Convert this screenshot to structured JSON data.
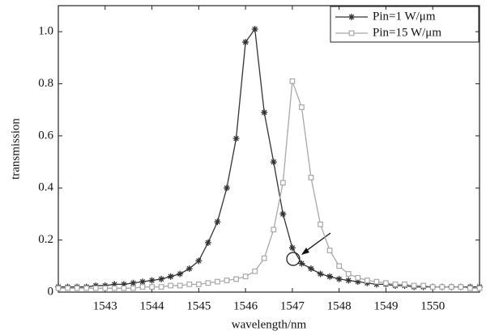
{
  "chart_data": {
    "type": "line",
    "xlabel": "wavelength/nm",
    "ylabel": "transmission",
    "x": [
      1542.0,
      1542.2,
      1542.4,
      1542.6,
      1542.8,
      1543.0,
      1543.2,
      1543.4,
      1543.6,
      1543.8,
      1544.0,
      1544.2,
      1544.4,
      1544.6,
      1544.8,
      1545.0,
      1545.2,
      1545.4,
      1545.6,
      1545.8,
      1546.0,
      1546.2,
      1546.4,
      1546.6,
      1546.8,
      1547.0,
      1547.2,
      1547.4,
      1547.6,
      1547.8,
      1548.0,
      1548.2,
      1548.4,
      1548.6,
      1548.8,
      1549.0,
      1549.2,
      1549.4,
      1549.6,
      1549.8,
      1550.0,
      1550.2,
      1550.4,
      1550.6,
      1550.8,
      1551.0
    ],
    "series": [
      {
        "name": "Pin=1 W/μm",
        "color": "#333333",
        "marker": "asterisk",
        "values": [
          0.02,
          0.02,
          0.02,
          0.02,
          0.025,
          0.025,
          0.03,
          0.03,
          0.035,
          0.04,
          0.045,
          0.05,
          0.06,
          0.07,
          0.09,
          0.12,
          0.19,
          0.27,
          0.4,
          0.59,
          0.96,
          1.01,
          0.69,
          0.5,
          0.3,
          0.17,
          0.11,
          0.09,
          0.07,
          0.06,
          0.05,
          0.045,
          0.04,
          0.035,
          0.03,
          0.03,
          0.025,
          0.025,
          0.02,
          0.02,
          0.02,
          0.02,
          0.02,
          0.02,
          0.02,
          0.02
        ]
      },
      {
        "name": "Pin=15 W/μm",
        "color": "#a8a8a8",
        "marker": "square",
        "values": [
          0.015,
          0.015,
          0.015,
          0.015,
          0.015,
          0.015,
          0.015,
          0.015,
          0.015,
          0.02,
          0.02,
          0.02,
          0.025,
          0.025,
          0.03,
          0.03,
          0.035,
          0.04,
          0.045,
          0.05,
          0.06,
          0.08,
          0.13,
          0.24,
          0.42,
          0.81,
          0.71,
          0.44,
          0.26,
          0.16,
          0.1,
          0.07,
          0.055,
          0.045,
          0.04,
          0.035,
          0.03,
          0.03,
          0.025,
          0.025,
          0.02,
          0.02,
          0.02,
          0.02,
          0.015,
          0.015
        ]
      }
    ],
    "xlim": [
      1542,
      1551
    ],
    "ylim": [
      0,
      1.1
    ],
    "xticks": [
      1543,
      1544,
      1545,
      1546,
      1547,
      1548,
      1549,
      1550
    ],
    "yticks": [
      0,
      0.2,
      0.4,
      0.6,
      0.8,
      {
        "value": 1,
        "label": "1.0"
      }
    ],
    "legend": "upper right",
    "grid": false
  }
}
